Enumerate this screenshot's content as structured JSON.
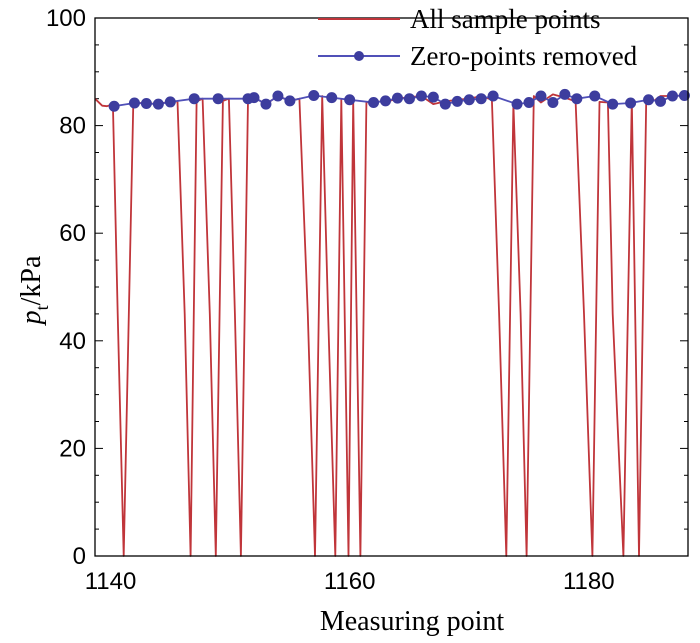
{
  "chart_data": {
    "type": "line",
    "xlabel": "Measuring point",
    "ylabel_main": "p",
    "ylabel_sub": "t",
    "ylabel_unit": "/kPa",
    "xlim": [
      1138.7,
      1188.3
    ],
    "ylim": [
      0,
      100
    ],
    "x_ticks": [
      1140,
      1160,
      1180
    ],
    "y_ticks": [
      0,
      20,
      40,
      60,
      80,
      100
    ],
    "legend_position": "top-right",
    "colors": {
      "all_points": "#c0353a",
      "zero_removed": "#5050b8",
      "zero_removed_marker": "#3d3d9e"
    },
    "series": [
      {
        "name": "All sample points",
        "x": [
          1138.7,
          1139.3,
          1139.7,
          1140.2,
          1140.6,
          1141.1,
          1141.9,
          1142.9,
          1143.9,
          1144.9,
          1145.6,
          1146.2,
          1146.7,
          1147.2,
          1147.7,
          1148.3,
          1148.8,
          1149.4,
          1149.9,
          1150.4,
          1150.9,
          1151.5,
          1152.0,
          1153.0,
          1154.0,
          1155.0,
          1155.8,
          1156.5,
          1157.1,
          1157.7,
          1158.2,
          1158.8,
          1159.3,
          1159.9,
          1160.3,
          1160.9,
          1161.4,
          1162.0,
          1163.0,
          1164.0,
          1165.0,
          1166.0,
          1167.0,
          1168.0,
          1169.0,
          1170.0,
          1171.0,
          1171.9,
          1172.5,
          1173.1,
          1173.7,
          1174.3,
          1174.8,
          1175.4,
          1176.0,
          1177.0,
          1178.0,
          1178.9,
          1179.6,
          1180.3,
          1180.9,
          1181.6,
          1182.0,
          1182.9,
          1183.6,
          1184.2,
          1184.8,
          1185.5,
          1186.0,
          1187.0,
          1188.0
        ],
        "y": [
          85.0,
          83.7,
          83.6,
          84.0,
          45.0,
          0,
          84.2,
          84.2,
          84.0,
          84.4,
          84.5,
          45.0,
          0,
          84.5,
          85.0,
          45.0,
          0,
          84.6,
          85.0,
          45.0,
          0,
          84.8,
          85.2,
          84.0,
          85.5,
          84.6,
          85.0,
          45.0,
          0,
          85.5,
          45.0,
          0,
          84.8,
          0,
          84.6,
          0,
          84.3,
          84.5,
          84.4,
          85.0,
          85.3,
          85.5,
          84.0,
          84.5,
          84.8,
          85.0,
          85.5,
          84.8,
          45.0,
          0,
          84.0,
          45.0,
          0,
          85.5,
          84.3,
          85.8,
          85.2,
          84.5,
          45.0,
          0,
          84.4,
          84.3,
          45.0,
          0,
          84.8,
          0,
          84.5,
          84.7,
          85.5,
          85.5,
          85.6
        ]
      },
      {
        "name": "Zero-points removed",
        "x": [
          1140.3,
          1142.0,
          1143.0,
          1144.0,
          1145.0,
          1147.0,
          1149.0,
          1151.5,
          1152.0,
          1153.0,
          1154.0,
          1155.0,
          1157.0,
          1158.5,
          1160.0,
          1162.0,
          1163.0,
          1164.0,
          1165.0,
          1166.0,
          1167.0,
          1168.0,
          1169.0,
          1170.0,
          1171.0,
          1172.0,
          1174.0,
          1175.0,
          1176.0,
          1177.0,
          1178.0,
          1179.0,
          1180.5,
          1182.0,
          1183.5,
          1185.0,
          1186.0,
          1187.0,
          1188.0
        ],
        "y": [
          83.6,
          84.2,
          84.1,
          84.0,
          84.4,
          85.0,
          85.0,
          85.0,
          85.2,
          84.0,
          85.5,
          84.6,
          85.6,
          85.2,
          84.8,
          84.3,
          84.6,
          85.1,
          85.0,
          85.5,
          85.3,
          84.0,
          84.5,
          84.8,
          85.0,
          85.5,
          84.0,
          84.3,
          85.5,
          84.3,
          85.8,
          85.0,
          85.5,
          84.0,
          84.2,
          84.8,
          84.5,
          85.5,
          85.6
        ]
      }
    ]
  }
}
